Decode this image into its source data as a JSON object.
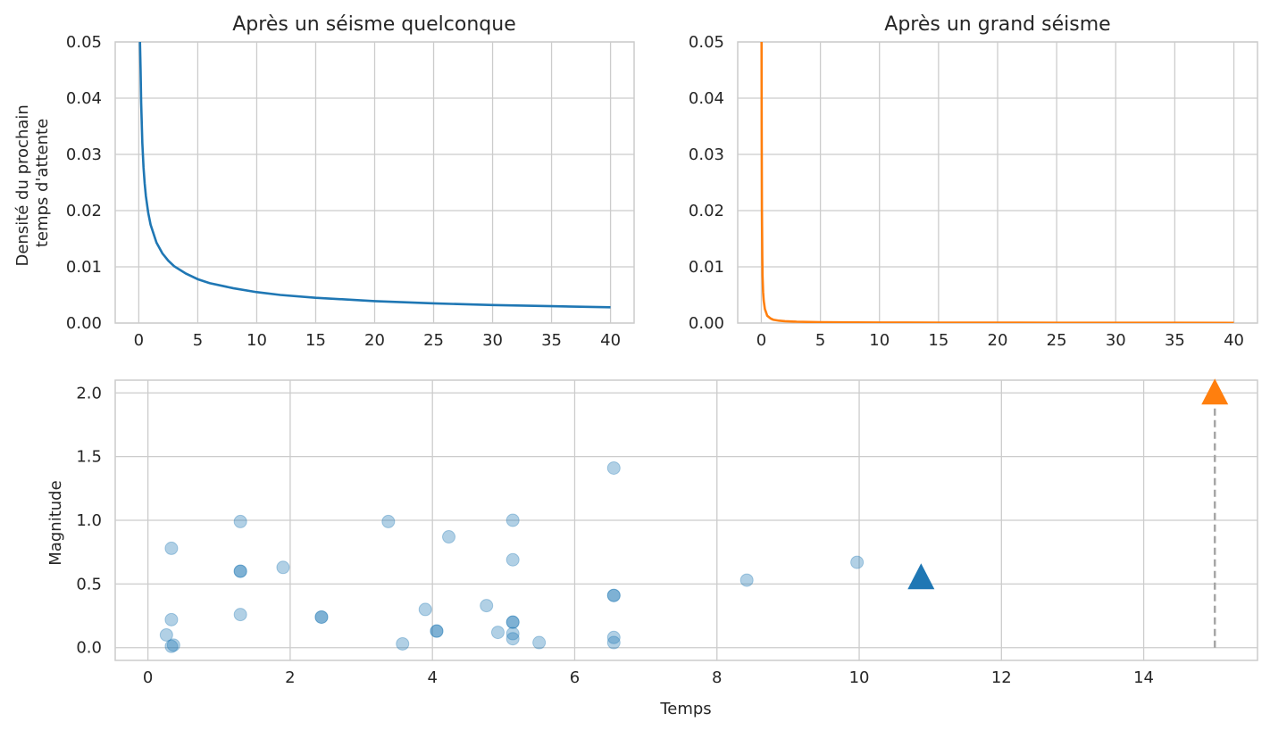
{
  "chart_data": [
    {
      "type": "line",
      "title": "Après un séisme quelconque",
      "xlabel": "",
      "ylabel": "Densité du prochain\ntemps d'attente",
      "xlim": [
        -2,
        42
      ],
      "ylim": [
        0,
        0.05
      ],
      "xticks": [
        0,
        5,
        10,
        15,
        20,
        25,
        30,
        35,
        40
      ],
      "yticks": [
        "0.00",
        "0.01",
        "0.02",
        "0.03",
        "0.04",
        "0.05"
      ],
      "grid": true,
      "color": "#1f77b4",
      "series": [
        {
          "x": [
            0.1,
            0.15,
            0.2,
            0.3,
            0.4,
            0.5,
            0.6,
            0.8,
            1,
            1.5,
            2,
            2.5,
            3,
            4,
            5,
            6,
            8,
            10,
            12,
            15,
            20,
            25,
            30,
            35,
            40
          ],
          "y": [
            0.05,
            0.0452,
            0.0392,
            0.032,
            0.0277,
            0.0248,
            0.0226,
            0.0196,
            0.0175,
            0.0143,
            0.0124,
            0.0111,
            0.0101,
            0.0088,
            0.0078,
            0.0071,
            0.0062,
            0.0055,
            0.005,
            0.0045,
            0.0039,
            0.0035,
            0.0032,
            0.003,
            0.0028
          ]
        }
      ]
    },
    {
      "type": "line",
      "title": "Après un grand séisme",
      "xlabel": "",
      "ylabel": "",
      "xlim": [
        -2,
        42
      ],
      "ylim": [
        0,
        0.05
      ],
      "xticks": [
        0,
        5,
        10,
        15,
        20,
        25,
        30,
        35,
        40
      ],
      "yticks": [
        "0.00",
        "0.01",
        "0.02",
        "0.03",
        "0.04",
        "0.05"
      ],
      "grid": true,
      "color": "#ff7f0e",
      "series": [
        {
          "x": [
            0.02,
            0.03,
            0.05,
            0.08,
            0.1,
            0.15,
            0.2,
            0.3,
            0.5,
            0.8,
            1,
            1.5,
            2,
            3,
            5,
            8,
            10,
            15,
            20,
            25,
            30,
            35,
            40
          ],
          "y": [
            0.05,
            0.035,
            0.02,
            0.012,
            0.0085,
            0.0055,
            0.004,
            0.0025,
            0.0013,
            0.0008,
            0.0006,
            0.00042,
            0.00033,
            0.00024,
            0.00016,
            0.00011,
            0.0001,
            8e-05,
            7e-05,
            6e-05,
            5e-05,
            5e-05,
            4e-05
          ]
        }
      ]
    },
    {
      "type": "scatter",
      "title": "",
      "xlabel": "Temps",
      "ylabel": "Magnitude",
      "xlim": [
        -0.46,
        15.6
      ],
      "ylim": [
        -0.1,
        2.1
      ],
      "xticks": [
        0,
        2,
        4,
        6,
        8,
        10,
        12,
        14
      ],
      "yticks": [
        "0.0",
        "0.5",
        "1.0",
        "1.5",
        "2.0"
      ],
      "grid": true,
      "points_color": "#1f77b4",
      "points_alpha": 0.35,
      "points": [
        {
          "x": 0.33,
          "y": 0.78
        },
        {
          "x": 0.33,
          "y": 0.22
        },
        {
          "x": 0.26,
          "y": 0.1
        },
        {
          "x": 0.36,
          "y": 0.02
        },
        {
          "x": 0.33,
          "y": 0.01
        },
        {
          "x": 1.3,
          "y": 0.99
        },
        {
          "x": 1.3,
          "y": 0.6
        },
        {
          "x": 1.3,
          "y": 0.6
        },
        {
          "x": 1.3,
          "y": 0.26
        },
        {
          "x": 1.9,
          "y": 0.63
        },
        {
          "x": 2.44,
          "y": 0.24
        },
        {
          "x": 2.44,
          "y": 0.24
        },
        {
          "x": 3.38,
          "y": 0.99
        },
        {
          "x": 3.58,
          "y": 0.03
        },
        {
          "x": 3.9,
          "y": 0.3
        },
        {
          "x": 4.06,
          "y": 0.13
        },
        {
          "x": 4.06,
          "y": 0.13
        },
        {
          "x": 4.23,
          "y": 0.87
        },
        {
          "x": 4.76,
          "y": 0.33
        },
        {
          "x": 4.92,
          "y": 0.12
        },
        {
          "x": 5.13,
          "y": 1.0
        },
        {
          "x": 5.13,
          "y": 0.69
        },
        {
          "x": 5.13,
          "y": 0.2
        },
        {
          "x": 5.13,
          "y": 0.2
        },
        {
          "x": 5.13,
          "y": 0.11
        },
        {
          "x": 5.13,
          "y": 0.07
        },
        {
          "x": 5.5,
          "y": 0.04
        },
        {
          "x": 6.55,
          "y": 1.41
        },
        {
          "x": 6.55,
          "y": 0.41
        },
        {
          "x": 6.55,
          "y": 0.41
        },
        {
          "x": 6.55,
          "y": 0.08
        },
        {
          "x": 6.55,
          "y": 0.04
        },
        {
          "x": 8.42,
          "y": 0.53
        },
        {
          "x": 9.97,
          "y": 0.67
        }
      ],
      "markers": [
        {
          "x": 10.87,
          "y": 0.55,
          "color": "#1f77b4"
        },
        {
          "x": 15.0,
          "y": 2.0,
          "color": "#ff7f0e"
        }
      ],
      "vline": {
        "x": 15.0,
        "y_from": 0.0,
        "y_to": 2.0,
        "color": "#a6a6a6"
      }
    }
  ]
}
